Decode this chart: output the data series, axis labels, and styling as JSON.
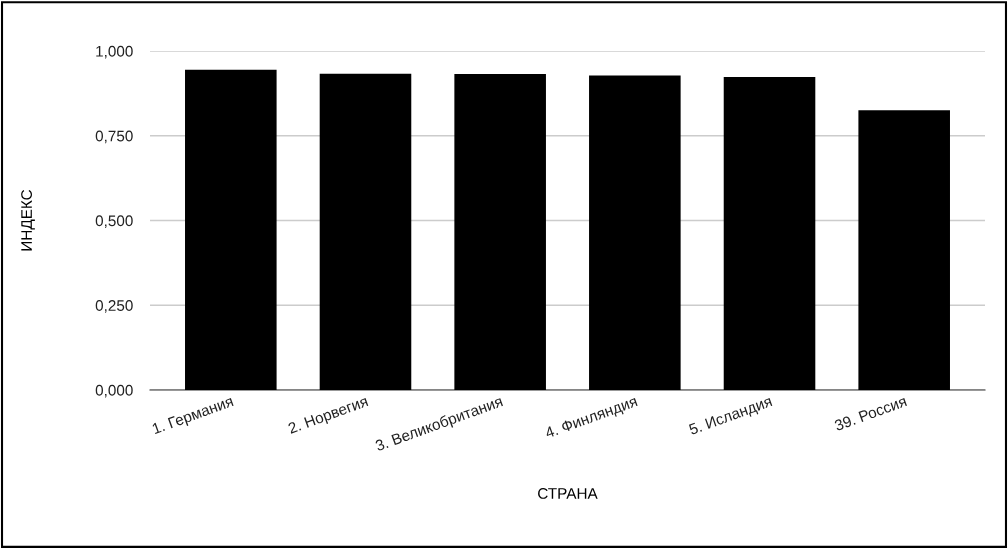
{
  "chart_data": {
    "type": "bar",
    "xlabel": "СТРАНА",
    "ylabel": "ИНДЕКС",
    "categories": [
      "1. Германия",
      "2. Норвегия",
      "3. Великобритания",
      "4. Финляндия",
      "5. Исландия",
      "39. Россия"
    ],
    "values": [
      0.945,
      0.933,
      0.932,
      0.928,
      0.923,
      0.825
    ],
    "color": "#000000",
    "ylim": [
      0,
      1
    ],
    "yticks": [
      {
        "value": 0,
        "label": "0,000"
      },
      {
        "value": 0.25,
        "label": "0,250"
      },
      {
        "value": 0.5,
        "label": "0,500"
      },
      {
        "value": 0.75,
        "label": "0,750"
      },
      {
        "value": 1,
        "label": "1,000"
      }
    ],
    "grid": "y",
    "legend": false
  }
}
